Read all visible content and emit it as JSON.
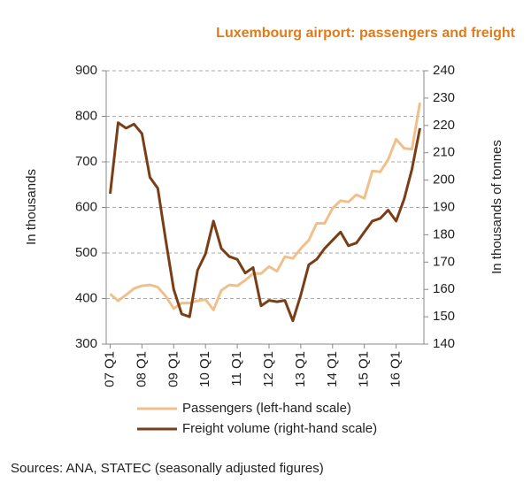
{
  "chart_data": {
    "type": "line",
    "title": "Luxembourg airport: passengers and freight",
    "y_label": "In thousands",
    "y2_label": "In thousands of tonnes",
    "source": "Sources: ANA, STATEC (seasonally adjusted figures)",
    "categories": [
      "07 Q1",
      null,
      null,
      null,
      "08 Q1",
      null,
      null,
      null,
      "09 Q1",
      null,
      null,
      null,
      "10 Q1",
      null,
      null,
      null,
      "11 Q1",
      null,
      null,
      null,
      "12 Q1",
      null,
      null,
      null,
      "13 Q1",
      null,
      null,
      null,
      "14 Q1",
      null,
      null,
      null,
      "15 Q1",
      null,
      null,
      null,
      "16 Q1",
      null,
      null,
      null
    ],
    "ylim": [
      300,
      900
    ],
    "yticks": [
      300,
      400,
      500,
      600,
      700,
      800,
      900
    ],
    "y2lim": [
      140,
      240
    ],
    "y2ticks": [
      140,
      150,
      160,
      170,
      180,
      190,
      200,
      210,
      220,
      230,
      240
    ],
    "grid": true,
    "series": [
      {
        "name": "Passengers (left-hand scale)",
        "color": "#f0c08c",
        "axis": "y",
        "values": [
          410,
          395,
          408,
          422,
          428,
          430,
          425,
          405,
          378,
          390,
          390,
          395,
          398,
          375,
          418,
          430,
          428,
          440,
          455,
          455,
          470,
          460,
          492,
          488,
          510,
          528,
          565,
          565,
          598,
          615,
          612,
          628,
          620,
          680,
          678,
          705,
          750,
          730,
          728,
          830
        ]
      },
      {
        "name": "Freight volume (right-hand scale)",
        "color": "#7a3e17",
        "axis": "y2",
        "values": [
          195,
          221,
          219,
          220.5,
          217,
          201,
          197,
          178,
          160,
          151,
          150,
          167,
          173,
          185,
          175,
          172,
          171,
          166,
          168,
          154,
          156,
          155.5,
          156,
          148.5,
          158,
          169,
          171,
          175,
          178,
          181,
          176,
          177,
          181,
          185,
          186,
          189,
          185,
          193,
          204,
          219
        ]
      }
    ]
  }
}
